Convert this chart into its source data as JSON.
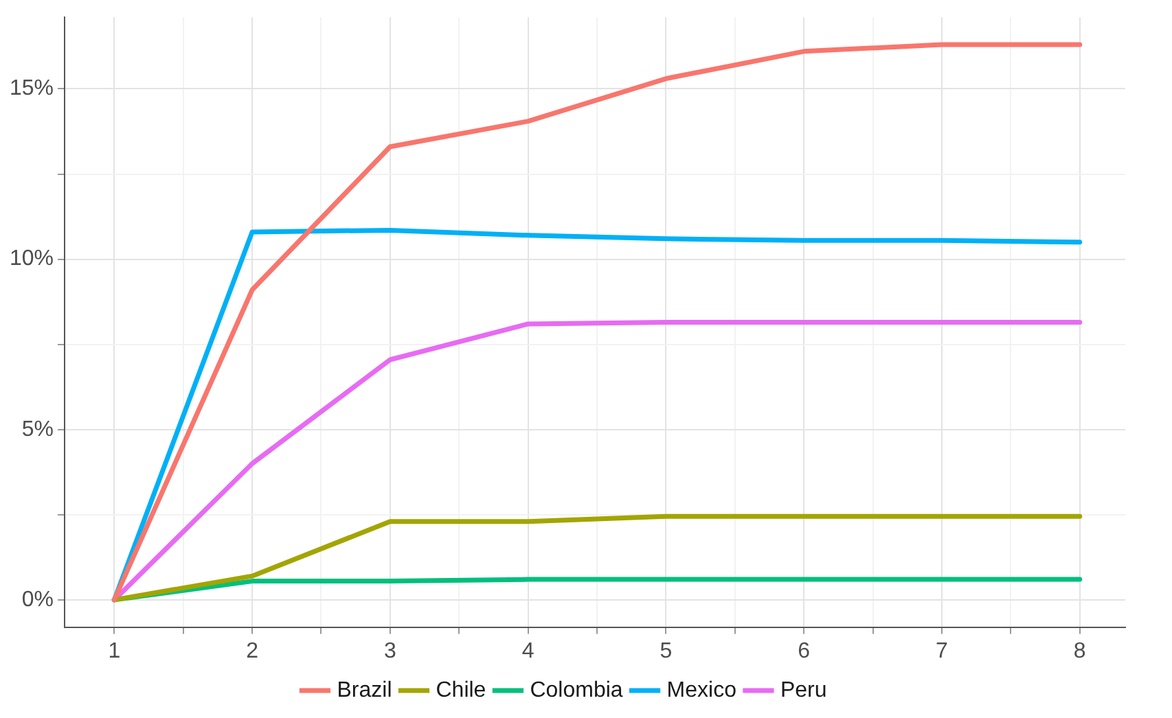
{
  "chart_data": {
    "type": "line",
    "x": [
      1,
      2,
      3,
      4,
      5,
      6,
      7,
      8
    ],
    "series": [
      {
        "name": "Brazil",
        "color": "#f8766d",
        "values": [
          0,
          9.1,
          13.3,
          14.05,
          15.3,
          16.1,
          16.3,
          16.3
        ]
      },
      {
        "name": "Chile",
        "color": "#a3a500",
        "values": [
          0,
          0.7,
          2.3,
          2.3,
          2.45,
          2.45,
          2.45,
          2.45
        ]
      },
      {
        "name": "Colombia",
        "color": "#00bf7d",
        "values": [
          0,
          0.55,
          0.55,
          0.6,
          0.6,
          0.6,
          0.6,
          0.6
        ]
      },
      {
        "name": "Mexico",
        "color": "#00b0f6",
        "values": [
          0,
          10.8,
          10.85,
          10.7,
          10.6,
          10.55,
          10.55,
          10.5
        ]
      },
      {
        "name": "Peru",
        "color": "#e76bf3",
        "values": [
          0,
          4.0,
          7.05,
          8.1,
          8.15,
          8.15,
          8.15,
          8.15
        ]
      }
    ],
    "xlim": [
      0.64,
      8.33
    ],
    "xticks": [
      1,
      {
        "value": 1.5,
        "label": null
      },
      2,
      {
        "value": 2.5,
        "label": null
      },
      3,
      {
        "value": 3.5,
        "label": null
      },
      4,
      {
        "value": 4.5,
        "label": null
      },
      5,
      {
        "value": 5.5,
        "label": null
      },
      6,
      {
        "value": 6.5,
        "label": null
      },
      7,
      {
        "value": 7.5,
        "label": null
      },
      8
    ],
    "ylim": [
      -0.8,
      17.1
    ],
    "yticks": [
      {
        "value": 0,
        "label": "0%"
      },
      {
        "value": 2.5,
        "label": null
      },
      {
        "value": 5,
        "label": "5%"
      },
      {
        "value": 7.5,
        "label": null
      },
      {
        "value": 10,
        "label": "10%"
      },
      {
        "value": 12.5,
        "label": null
      },
      {
        "value": 15,
        "label": "15%"
      }
    ],
    "grid": true,
    "legend": "bottom",
    "marker": "none",
    "line_style": "solid"
  }
}
